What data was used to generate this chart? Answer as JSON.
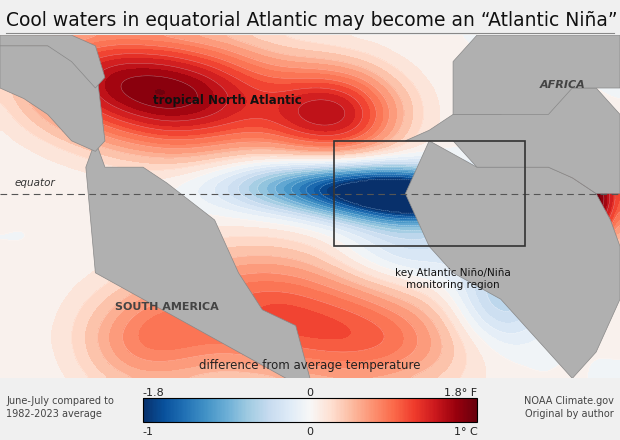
{
  "title": "Cool waters in equatorial Atlantic may become an “Atlantic Niña” event",
  "colorbar_title": "difference from average temperature",
  "colorbar_label_F_left": "-1.8",
  "colorbar_label_F_center": "0",
  "colorbar_label_F_right": "1.8° F",
  "colorbar_label_C_left": "-1",
  "colorbar_label_C_center": "0",
  "colorbar_label_C_right": "1° C",
  "left_note_line1": "June-July compared to",
  "left_note_line2": "1982-2023 average",
  "right_note_line1": "NOAA Climate.gov",
  "right_note_line2": "Original by author",
  "label_tropical_north": "tropical North Atlantic",
  "label_equator": "equator",
  "label_south_america": "SOUTH AMERICA",
  "label_africa": "AFRICA",
  "label_monitoring_region": "key Atlantic Niño/Niña\nmonitoring region",
  "land_color": "#b0b0b0",
  "ocean_bg": "#ffffff",
  "background_color": "#f0f0f0",
  "title_fontsize": 13.5,
  "annotation_fontsize": 9,
  "colorbar_colors": [
    "#08306b",
    "#08519c",
    "#2171b5",
    "#4292c6",
    "#6baed6",
    "#9ecae1",
    "#c6dbef",
    "#deebf7",
    "#ffffff",
    "#fee0d2",
    "#fcbba1",
    "#fc9272",
    "#fb6a4a",
    "#ef3b2c",
    "#cb181d",
    "#99000d",
    "#67000d"
  ],
  "vmin": -1.8,
  "vmax": 1.8
}
